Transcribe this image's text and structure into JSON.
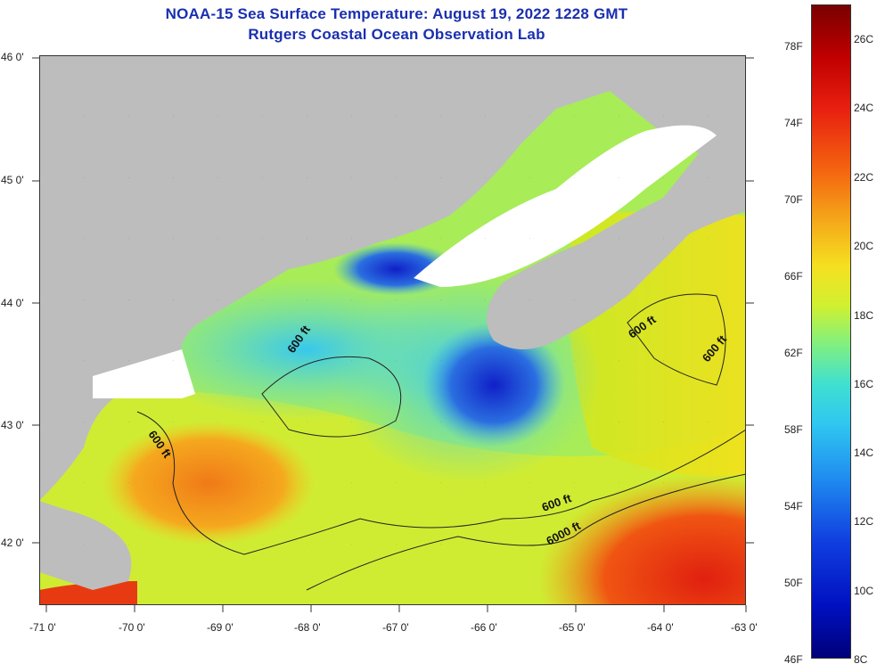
{
  "title_line1": "NOAA-15 Sea Surface Temperature:  August 19, 2022 1228 GMT",
  "title_line2": "Rutgers Coastal Ocean Observation Lab",
  "lat_labels": [
    "46 0'",
    "45 0'",
    "44 0'",
    "43 0'",
    "42 0'"
  ],
  "lon_labels": [
    "-71 0'",
    "-70 0'",
    "-69 0'",
    "-68 0'",
    "-67 0'",
    "-66 0'",
    "-65 0'",
    "-64 0'",
    "-63 0'"
  ],
  "contour_labels": [
    "600 ft",
    "600 ft",
    "600 ft",
    "600 ft",
    "600 ft",
    "6000 ft"
  ],
  "colorbar": {
    "fahrenheit": [
      "78F",
      "74F",
      "70F",
      "66F",
      "62F",
      "58F",
      "54F",
      "50F",
      "46F"
    ],
    "celsius": [
      "26C",
      "24C",
      "22C",
      "20C",
      "18C",
      "16C",
      "14C",
      "12C",
      "10C",
      "8C"
    ]
  }
}
